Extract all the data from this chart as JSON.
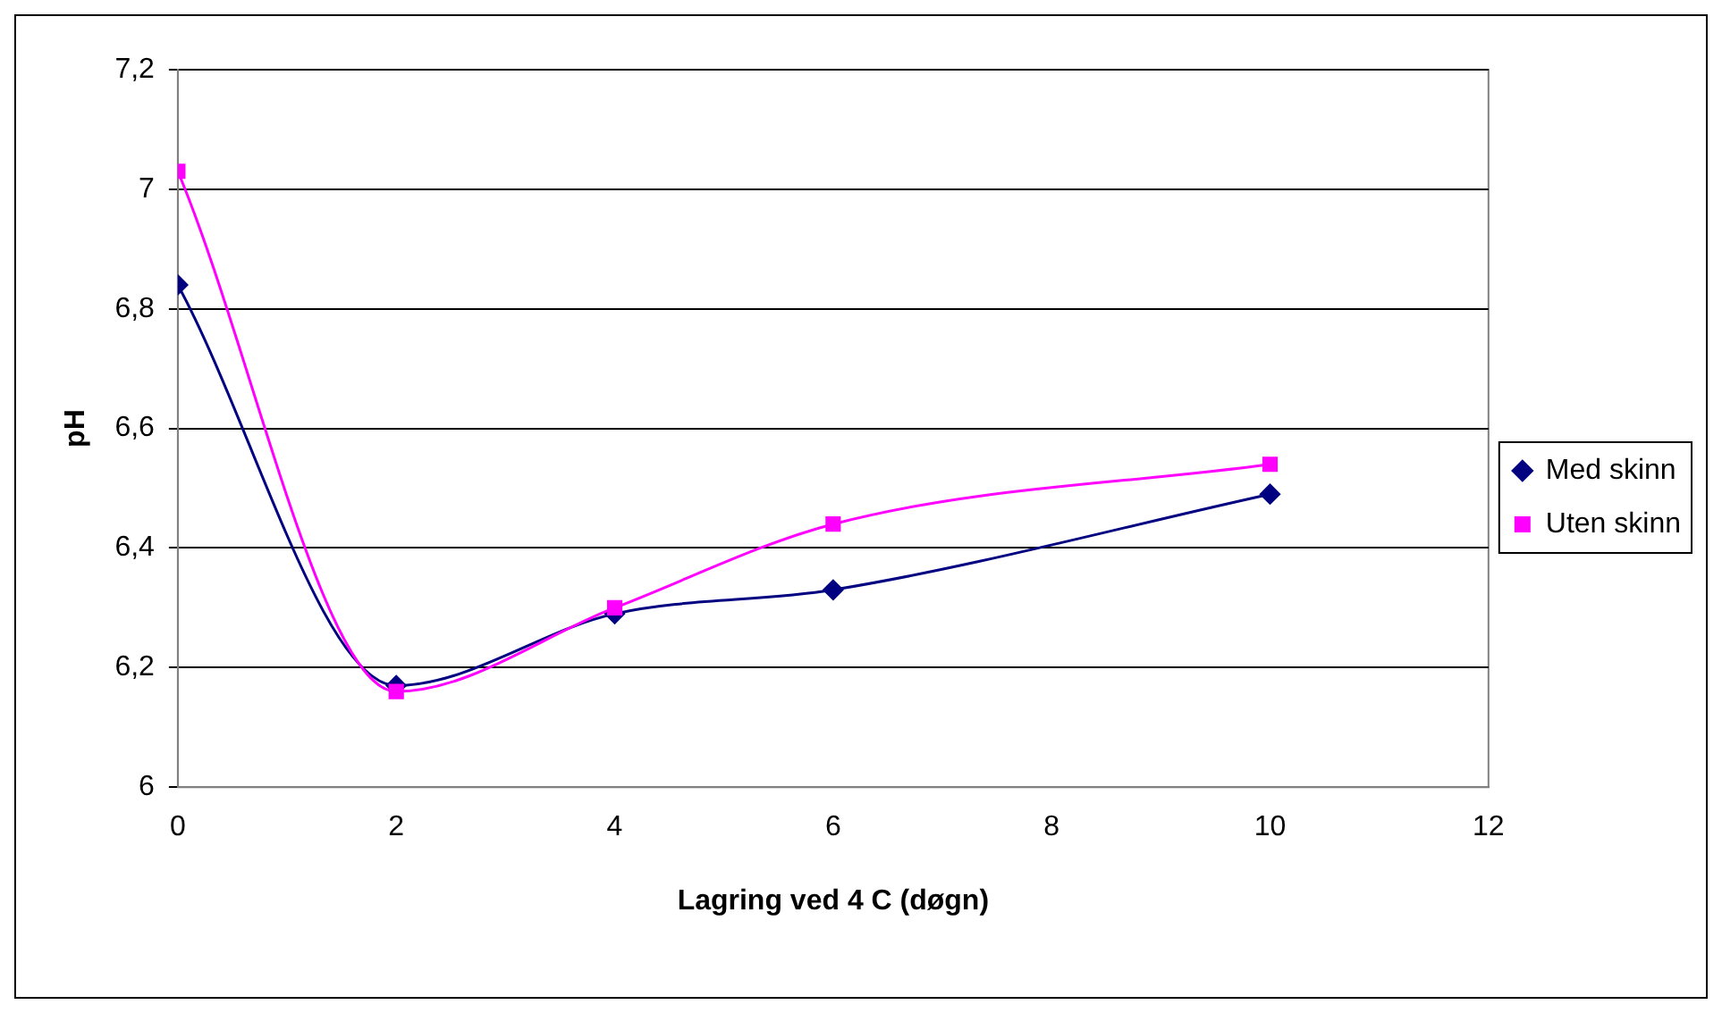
{
  "chart_data": {
    "type": "line",
    "xlabel": "Lagring ved 4 C (døgn)",
    "ylabel": "pH",
    "x": [
      0,
      2,
      4,
      6,
      10
    ],
    "series": [
      {
        "name": "Med skinn",
        "color": "#000080",
        "marker": "diamond",
        "values": [
          6.84,
          6.17,
          6.29,
          6.33,
          6.49
        ]
      },
      {
        "name": "Uten skinn",
        "color": "#ff00ff",
        "marker": "square",
        "values": [
          7.03,
          6.16,
          6.3,
          6.44,
          6.54
        ]
      }
    ],
    "xlim": [
      0,
      12
    ],
    "xticks": [
      0,
      2,
      4,
      6,
      8,
      10,
      12
    ],
    "ylim": [
      6,
      7.2
    ],
    "yticks": [
      6,
      {
        "value": 6.2,
        "label": "6,2"
      },
      {
        "value": 6.4,
        "label": "6,4"
      },
      {
        "value": 6.6,
        "label": "6,6"
      },
      {
        "value": 6.8,
        "label": "6,8"
      },
      7,
      {
        "value": 7.2,
        "label": "7,2"
      }
    ],
    "grid": "y",
    "legend": "right",
    "line_style": "solid"
  }
}
